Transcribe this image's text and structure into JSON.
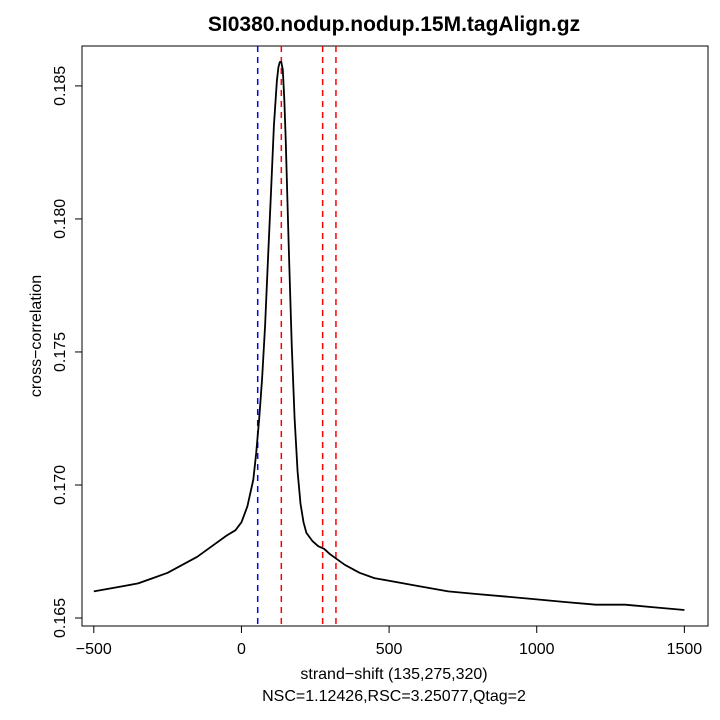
{
  "chart_data": {
    "type": "line",
    "title": "SI0380.nodup.nodup.15M.tagAlign.gz",
    "xlabel": "strand−shift (135,275,320)",
    "subtitle": "NSC=1.12426,RSC=3.25077,Qtag=2",
    "ylabel": "cross−correlation",
    "xlim": [
      -540,
      1580
    ],
    "ylim": [
      0.1647,
      0.1865
    ],
    "x_ticks": [
      -500,
      0,
      500,
      1000,
      1500
    ],
    "x_tick_labels": [
      "−500",
      "0",
      "500",
      "1000",
      "1500"
    ],
    "y_ticks": [
      0.165,
      0.17,
      0.175,
      0.18,
      0.185
    ],
    "y_tick_labels": [
      "0.165",
      "0.170",
      "0.175",
      "0.180",
      "0.185"
    ],
    "grid": false,
    "vlines": [
      {
        "x": 55,
        "color": "#0000ff",
        "style": "dashed"
      },
      {
        "x": 135,
        "color": "#ff0000",
        "style": "dashed"
      },
      {
        "x": 275,
        "color": "#ff0000",
        "style": "dashed"
      },
      {
        "x": 320,
        "color": "#ff0000",
        "style": "dashed"
      }
    ],
    "series": [
      {
        "color": "#000000",
        "x": [
          -500,
          -450,
          -400,
          -350,
          -300,
          -250,
          -200,
          -150,
          -100,
          -50,
          -20,
          0,
          20,
          40,
          50,
          60,
          70,
          80,
          90,
          100,
          110,
          120,
          125,
          130,
          135,
          140,
          145,
          150,
          160,
          170,
          180,
          190,
          200,
          210,
          220,
          240,
          260,
          280,
          300,
          350,
          400,
          450,
          500,
          600,
          700,
          800,
          900,
          1000,
          1100,
          1200,
          1300,
          1400,
          1500
        ],
        "y": [
          0.166,
          0.1661,
          0.1662,
          0.1663,
          0.1665,
          0.1667,
          0.167,
          0.1673,
          0.1677,
          0.1681,
          0.1683,
          0.1686,
          0.1692,
          0.1702,
          0.1712,
          0.1725,
          0.174,
          0.176,
          0.1785,
          0.181,
          0.1835,
          0.1852,
          0.1857,
          0.1859,
          0.1859,
          0.1856,
          0.1845,
          0.183,
          0.179,
          0.1753,
          0.1725,
          0.1705,
          0.1693,
          0.1686,
          0.1682,
          0.1679,
          0.1677,
          0.1676,
          0.1674,
          0.167,
          0.1667,
          0.1665,
          0.1664,
          0.1662,
          0.166,
          0.1659,
          0.1658,
          0.1657,
          0.1656,
          0.1655,
          0.1655,
          0.1654,
          0.1653
        ]
      }
    ]
  }
}
